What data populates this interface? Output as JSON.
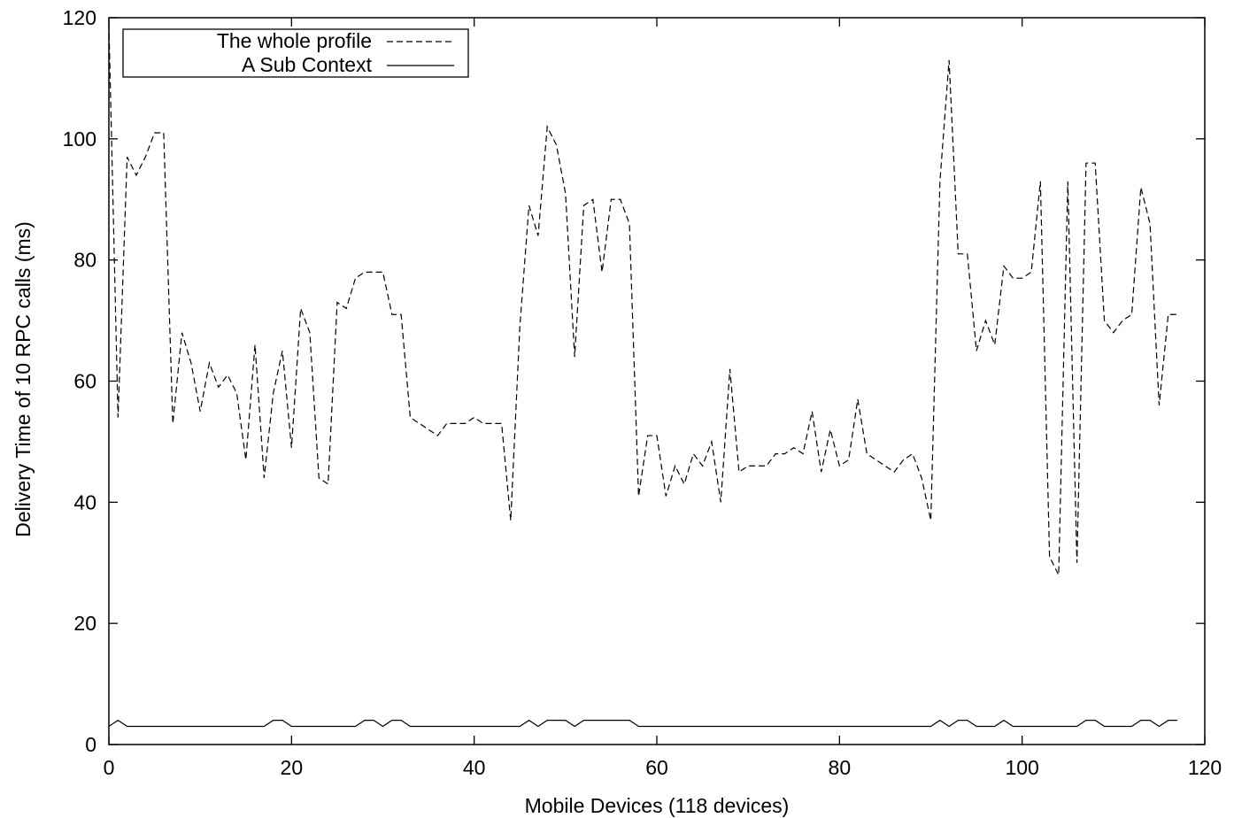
{
  "chart_data": {
    "type": "line",
    "title": "",
    "xlabel": "Mobile Devices (118 devices)",
    "ylabel": "Delivery Time of 10 RPC calls (ms)",
    "xlim": [
      0,
      120
    ],
    "ylim": [
      0,
      120
    ],
    "xticks": [
      0,
      20,
      40,
      60,
      80,
      100,
      120
    ],
    "yticks": [
      0,
      20,
      40,
      60,
      80,
      100,
      120
    ],
    "xtick_labels": [
      "0",
      "20",
      "40",
      "60",
      "80",
      "100",
      "120"
    ],
    "ytick_labels": [
      "0",
      "20",
      "40",
      "60",
      "80",
      "100",
      "120"
    ],
    "grid": false,
    "legend": "top-left",
    "x": [
      0,
      1,
      2,
      3,
      4,
      5,
      6,
      7,
      8,
      9,
      10,
      11,
      12,
      13,
      14,
      15,
      16,
      17,
      18,
      19,
      20,
      21,
      22,
      23,
      24,
      25,
      26,
      27,
      28,
      29,
      30,
      31,
      32,
      33,
      34,
      35,
      36,
      37,
      38,
      39,
      40,
      41,
      42,
      43,
      44,
      45,
      46,
      47,
      48,
      49,
      50,
      51,
      52,
      53,
      54,
      55,
      56,
      57,
      58,
      59,
      60,
      61,
      62,
      63,
      64,
      65,
      66,
      67,
      68,
      69,
      70,
      71,
      72,
      73,
      74,
      75,
      76,
      77,
      78,
      79,
      80,
      81,
      82,
      83,
      84,
      85,
      86,
      87,
      88,
      89,
      90,
      91,
      92,
      93,
      94,
      95,
      96,
      97,
      98,
      99,
      100,
      101,
      102,
      103,
      104,
      105,
      106,
      107,
      108,
      109,
      110,
      111,
      112,
      113,
      114,
      115,
      116,
      117
    ],
    "series": [
      {
        "name": "The whole profile",
        "style": "dashed",
        "values": [
          119,
          54,
          97,
          94,
          97,
          101,
          101,
          53,
          68,
          63,
          55,
          63,
          59,
          61,
          58,
          47,
          66,
          44,
          58,
          65,
          49,
          72,
          68,
          44,
          43,
          73,
          72,
          77,
          78,
          78,
          78,
          71,
          71,
          54,
          53,
          52,
          51,
          53,
          53,
          53,
          54,
          53,
          53,
          53,
          37,
          69,
          89,
          84,
          102,
          99,
          91,
          64,
          89,
          90,
          78,
          90,
          90,
          86,
          41,
          51,
          51,
          41,
          46,
          43,
          48,
          46,
          50,
          40,
          62,
          45,
          46,
          46,
          46,
          48,
          48,
          49,
          48,
          55,
          45,
          52,
          46,
          47,
          57,
          48,
          47,
          46,
          45,
          47,
          48,
          44,
          37,
          93,
          113,
          81,
          81,
          65,
          70,
          66,
          79,
          77,
          77,
          78,
          93,
          31,
          28,
          93,
          30,
          96,
          96,
          70,
          68,
          70,
          71,
          92,
          86,
          56,
          71,
          71
        ]
      },
      {
        "name": "A Sub Context",
        "style": "solid",
        "values": [
          3,
          4,
          3,
          3,
          3,
          3,
          3,
          3,
          3,
          3,
          3,
          3,
          3,
          3,
          3,
          3,
          3,
          3,
          4,
          4,
          3,
          3,
          3,
          3,
          3,
          3,
          3,
          3,
          4,
          4,
          3,
          4,
          4,
          3,
          3,
          3,
          3,
          3,
          3,
          3,
          3,
          3,
          3,
          3,
          3,
          3,
          4,
          3,
          4,
          4,
          4,
          3,
          4,
          4,
          4,
          4,
          4,
          4,
          3,
          3,
          3,
          3,
          3,
          3,
          3,
          3,
          3,
          3,
          3,
          3,
          3,
          3,
          3,
          3,
          3,
          3,
          3,
          3,
          3,
          3,
          3,
          3,
          3,
          3,
          3,
          3,
          3,
          3,
          3,
          3,
          3,
          4,
          3,
          4,
          4,
          3,
          3,
          3,
          4,
          3,
          3,
          3,
          3,
          3,
          3,
          3,
          3,
          4,
          4,
          3,
          3,
          3,
          3,
          4,
          4,
          3,
          4,
          4
        ]
      }
    ]
  }
}
